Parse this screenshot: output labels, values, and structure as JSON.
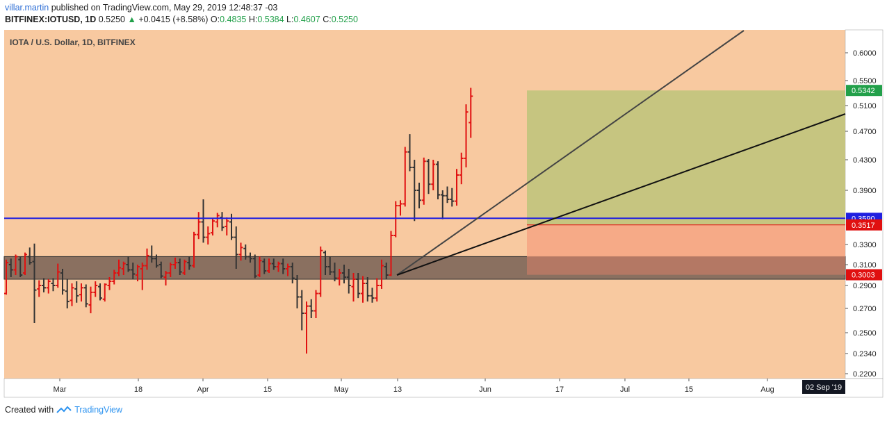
{
  "header": {
    "author": "villar.martin",
    "published_text": "published on TradingView.com, May 29, 2019 12:48:37 -03",
    "symbol": "BITFINEX:IOTUSD, 1D",
    "last": "0.5250",
    "change": "+0.0415 (+8.58%)",
    "o_label": "O:",
    "o_value": "0.4835",
    "h_label": "H:",
    "h_value": "0.5384",
    "l_label": "L:",
    "l_value": "0.4607",
    "c_label": "C:",
    "c_value": "0.5250"
  },
  "footer": {
    "created_with": "Created with",
    "brand": "TradingView"
  },
  "colors": {
    "background": "#f8c9a0",
    "bull": "#e01010",
    "bear": "#333333",
    "support_zone": "#8a7060",
    "support_line": "#2020e0",
    "target_zone": "#c6c580",
    "stop_zone": "#f6a483",
    "axis_bg": "#ffffff"
  },
  "chart_data": {
    "type": "ohlc",
    "title": "IOTA / U.S. Dollar, 1D, BITFINEX",
    "y_ticks": [
      "0.6000",
      "0.5500",
      "0.5100",
      "0.4700",
      "0.4300",
      "0.3900",
      "0.3300",
      "0.3100",
      "0.2900",
      "0.2700",
      "0.2500",
      "0.2340",
      "0.2200"
    ],
    "x_ticks": [
      "Mar",
      "18",
      "Apr",
      "15",
      "May",
      "13",
      "Jun",
      "17",
      "Jul",
      "15",
      "Aug"
    ],
    "crosshair_date": "02 Sep '19",
    "price_labels": [
      {
        "value": "0.5342",
        "color": "#22a04a"
      },
      {
        "value": "0.3590",
        "color": "#2020e0"
      },
      {
        "value": "0.3517",
        "color": "#e01010"
      },
      {
        "value": "0.3003",
        "color": "#e01010"
      }
    ],
    "support_zone": {
      "from": 0.296,
      "to": 0.318
    },
    "horizontal_line": 0.359,
    "target_zone": {
      "from": 0.3517,
      "to": 0.5342
    },
    "stop_zone": {
      "from": 0.3003,
      "to": 0.3517
    },
    "candles": [
      {
        "o": 0.283,
        "h": 0.315,
        "l": 0.282,
        "c": 0.312
      },
      {
        "o": 0.31,
        "h": 0.316,
        "l": 0.298,
        "c": 0.305
      },
      {
        "o": 0.305,
        "h": 0.32,
        "l": 0.3,
        "c": 0.318
      },
      {
        "o": 0.315,
        "h": 0.318,
        "l": 0.298,
        "c": 0.3
      },
      {
        "o": 0.302,
        "h": 0.322,
        "l": 0.3,
        "c": 0.32
      },
      {
        "o": 0.318,
        "h": 0.327,
        "l": 0.31,
        "c": 0.312
      },
      {
        "o": 0.313,
        "h": 0.331,
        "l": 0.258,
        "c": 0.286
      },
      {
        "o": 0.287,
        "h": 0.295,
        "l": 0.28,
        "c": 0.29
      },
      {
        "o": 0.29,
        "h": 0.297,
        "l": 0.284,
        "c": 0.288
      },
      {
        "o": 0.288,
        "h": 0.296,
        "l": 0.283,
        "c": 0.294
      },
      {
        "o": 0.292,
        "h": 0.297,
        "l": 0.285,
        "c": 0.29
      },
      {
        "o": 0.29,
        "h": 0.311,
        "l": 0.288,
        "c": 0.303
      },
      {
        "o": 0.302,
        "h": 0.306,
        "l": 0.282,
        "c": 0.286
      },
      {
        "o": 0.285,
        "h": 0.296,
        "l": 0.27,
        "c": 0.276
      },
      {
        "o": 0.277,
        "h": 0.292,
        "l": 0.272,
        "c": 0.288
      },
      {
        "o": 0.287,
        "h": 0.294,
        "l": 0.275,
        "c": 0.281
      },
      {
        "o": 0.282,
        "h": 0.292,
        "l": 0.276,
        "c": 0.288
      },
      {
        "o": 0.288,
        "h": 0.291,
        "l": 0.271,
        "c": 0.274
      },
      {
        "o": 0.273,
        "h": 0.289,
        "l": 0.266,
        "c": 0.284
      },
      {
        "o": 0.284,
        "h": 0.294,
        "l": 0.28,
        "c": 0.29
      },
      {
        "o": 0.289,
        "h": 0.292,
        "l": 0.277,
        "c": 0.279
      },
      {
        "o": 0.278,
        "h": 0.292,
        "l": 0.276,
        "c": 0.291
      },
      {
        "o": 0.29,
        "h": 0.298,
        "l": 0.286,
        "c": 0.294
      },
      {
        "o": 0.294,
        "h": 0.305,
        "l": 0.291,
        "c": 0.302
      },
      {
        "o": 0.302,
        "h": 0.315,
        "l": 0.299,
        "c": 0.307
      },
      {
        "o": 0.306,
        "h": 0.313,
        "l": 0.3,
        "c": 0.311
      },
      {
        "o": 0.31,
        "h": 0.318,
        "l": 0.303,
        "c": 0.305
      },
      {
        "o": 0.305,
        "h": 0.312,
        "l": 0.296,
        "c": 0.301
      },
      {
        "o": 0.3,
        "h": 0.31,
        "l": 0.294,
        "c": 0.308
      },
      {
        "o": 0.306,
        "h": 0.312,
        "l": 0.286,
        "c": 0.309
      },
      {
        "o": 0.309,
        "h": 0.326,
        "l": 0.305,
        "c": 0.319
      },
      {
        "o": 0.318,
        "h": 0.329,
        "l": 0.312,
        "c": 0.316
      },
      {
        "o": 0.316,
        "h": 0.32,
        "l": 0.307,
        "c": 0.309
      },
      {
        "o": 0.31,
        "h": 0.313,
        "l": 0.297,
        "c": 0.299
      },
      {
        "o": 0.298,
        "h": 0.304,
        "l": 0.29,
        "c": 0.302
      },
      {
        "o": 0.302,
        "h": 0.312,
        "l": 0.298,
        "c": 0.31
      },
      {
        "o": 0.31,
        "h": 0.317,
        "l": 0.306,
        "c": 0.312
      },
      {
        "o": 0.312,
        "h": 0.316,
        "l": 0.3,
        "c": 0.303
      },
      {
        "o": 0.302,
        "h": 0.315,
        "l": 0.3,
        "c": 0.313
      },
      {
        "o": 0.312,
        "h": 0.318,
        "l": 0.305,
        "c": 0.309
      },
      {
        "o": 0.309,
        "h": 0.344,
        "l": 0.307,
        "c": 0.341
      },
      {
        "o": 0.341,
        "h": 0.366,
        "l": 0.336,
        "c": 0.355
      },
      {
        "o": 0.355,
        "h": 0.38,
        "l": 0.332,
        "c": 0.338
      },
      {
        "o": 0.338,
        "h": 0.35,
        "l": 0.33,
        "c": 0.342
      },
      {
        "o": 0.343,
        "h": 0.359,
        "l": 0.34,
        "c": 0.356
      },
      {
        "o": 0.355,
        "h": 0.365,
        "l": 0.349,
        "c": 0.362
      },
      {
        "o": 0.36,
        "h": 0.366,
        "l": 0.345,
        "c": 0.349
      },
      {
        "o": 0.35,
        "h": 0.36,
        "l": 0.34,
        "c": 0.356
      },
      {
        "o": 0.355,
        "h": 0.364,
        "l": 0.335,
        "c": 0.338
      },
      {
        "o": 0.338,
        "h": 0.35,
        "l": 0.306,
        "c": 0.32
      },
      {
        "o": 0.32,
        "h": 0.332,
        "l": 0.314,
        "c": 0.327
      },
      {
        "o": 0.326,
        "h": 0.33,
        "l": 0.315,
        "c": 0.318
      },
      {
        "o": 0.318,
        "h": 0.322,
        "l": 0.312,
        "c": 0.316
      },
      {
        "o": 0.316,
        "h": 0.32,
        "l": 0.297,
        "c": 0.299
      },
      {
        "o": 0.3,
        "h": 0.318,
        "l": 0.298,
        "c": 0.314
      },
      {
        "o": 0.313,
        "h": 0.316,
        "l": 0.301,
        "c": 0.304
      },
      {
        "o": 0.304,
        "h": 0.316,
        "l": 0.302,
        "c": 0.311
      },
      {
        "o": 0.311,
        "h": 0.316,
        "l": 0.305,
        "c": 0.308
      },
      {
        "o": 0.308,
        "h": 0.313,
        "l": 0.303,
        "c": 0.311
      },
      {
        "o": 0.311,
        "h": 0.316,
        "l": 0.301,
        "c": 0.306
      },
      {
        "o": 0.306,
        "h": 0.311,
        "l": 0.299,
        "c": 0.308
      },
      {
        "o": 0.308,
        "h": 0.312,
        "l": 0.292,
        "c": 0.297
      },
      {
        "o": 0.296,
        "h": 0.3,
        "l": 0.27,
        "c": 0.28
      },
      {
        "o": 0.28,
        "h": 0.286,
        "l": 0.252,
        "c": 0.266
      },
      {
        "o": 0.266,
        "h": 0.276,
        "l": 0.234,
        "c": 0.272
      },
      {
        "o": 0.272,
        "h": 0.278,
        "l": 0.262,
        "c": 0.268
      },
      {
        "o": 0.268,
        "h": 0.286,
        "l": 0.262,
        "c": 0.283
      },
      {
        "o": 0.283,
        "h": 0.328,
        "l": 0.28,
        "c": 0.324
      },
      {
        "o": 0.322,
        "h": 0.324,
        "l": 0.3,
        "c": 0.308
      },
      {
        "o": 0.308,
        "h": 0.318,
        "l": 0.3,
        "c": 0.303
      },
      {
        "o": 0.303,
        "h": 0.312,
        "l": 0.294,
        "c": 0.297
      },
      {
        "o": 0.297,
        "h": 0.306,
        "l": 0.29,
        "c": 0.302
      },
      {
        "o": 0.302,
        "h": 0.31,
        "l": 0.292,
        "c": 0.298
      },
      {
        "o": 0.298,
        "h": 0.306,
        "l": 0.283,
        "c": 0.29
      },
      {
        "o": 0.289,
        "h": 0.302,
        "l": 0.276,
        "c": 0.296
      },
      {
        "o": 0.296,
        "h": 0.302,
        "l": 0.279,
        "c": 0.283
      },
      {
        "o": 0.283,
        "h": 0.299,
        "l": 0.275,
        "c": 0.292
      },
      {
        "o": 0.292,
        "h": 0.298,
        "l": 0.276,
        "c": 0.281
      },
      {
        "o": 0.281,
        "h": 0.288,
        "l": 0.275,
        "c": 0.279
      },
      {
        "o": 0.279,
        "h": 0.297,
        "l": 0.276,
        "c": 0.29
      },
      {
        "o": 0.29,
        "h": 0.315,
        "l": 0.287,
        "c": 0.309
      },
      {
        "o": 0.308,
        "h": 0.312,
        "l": 0.296,
        "c": 0.3
      },
      {
        "o": 0.3,
        "h": 0.345,
        "l": 0.299,
        "c": 0.34
      },
      {
        "o": 0.34,
        "h": 0.378,
        "l": 0.338,
        "c": 0.373
      },
      {
        "o": 0.373,
        "h": 0.379,
        "l": 0.362,
        "c": 0.375
      },
      {
        "o": 0.375,
        "h": 0.448,
        "l": 0.372,
        "c": 0.441
      },
      {
        "o": 0.441,
        "h": 0.466,
        "l": 0.415,
        "c": 0.42
      },
      {
        "o": 0.42,
        "h": 0.43,
        "l": 0.356,
        "c": 0.39
      },
      {
        "o": 0.39,
        "h": 0.4,
        "l": 0.37,
        "c": 0.379
      },
      {
        "o": 0.379,
        "h": 0.433,
        "l": 0.374,
        "c": 0.428
      },
      {
        "o": 0.428,
        "h": 0.431,
        "l": 0.386,
        "c": 0.398
      },
      {
        "o": 0.398,
        "h": 0.43,
        "l": 0.39,
        "c": 0.424
      },
      {
        "o": 0.424,
        "h": 0.428,
        "l": 0.38,
        "c": 0.385
      },
      {
        "o": 0.385,
        "h": 0.39,
        "l": 0.358,
        "c": 0.384
      },
      {
        "o": 0.384,
        "h": 0.395,
        "l": 0.376,
        "c": 0.38
      },
      {
        "o": 0.38,
        "h": 0.393,
        "l": 0.372,
        "c": 0.378
      },
      {
        "o": 0.378,
        "h": 0.418,
        "l": 0.373,
        "c": 0.41
      },
      {
        "o": 0.41,
        "h": 0.44,
        "l": 0.398,
        "c": 0.432
      },
      {
        "o": 0.432,
        "h": 0.512,
        "l": 0.42,
        "c": 0.5
      },
      {
        "o": 0.4835,
        "h": 0.5384,
        "l": 0.4607,
        "c": 0.525
      }
    ],
    "trend_lines": [
      {
        "name": "steep",
        "x1": "2019-05-13",
        "y1": 0.3,
        "x2": "2019-08-15",
        "y2": 0.6,
        "color": "#444444"
      },
      {
        "name": "shallow",
        "x1": "2019-05-13",
        "y1": 0.3,
        "x2": "2019-09-02",
        "y2": 0.49,
        "color": "#111111"
      }
    ]
  }
}
